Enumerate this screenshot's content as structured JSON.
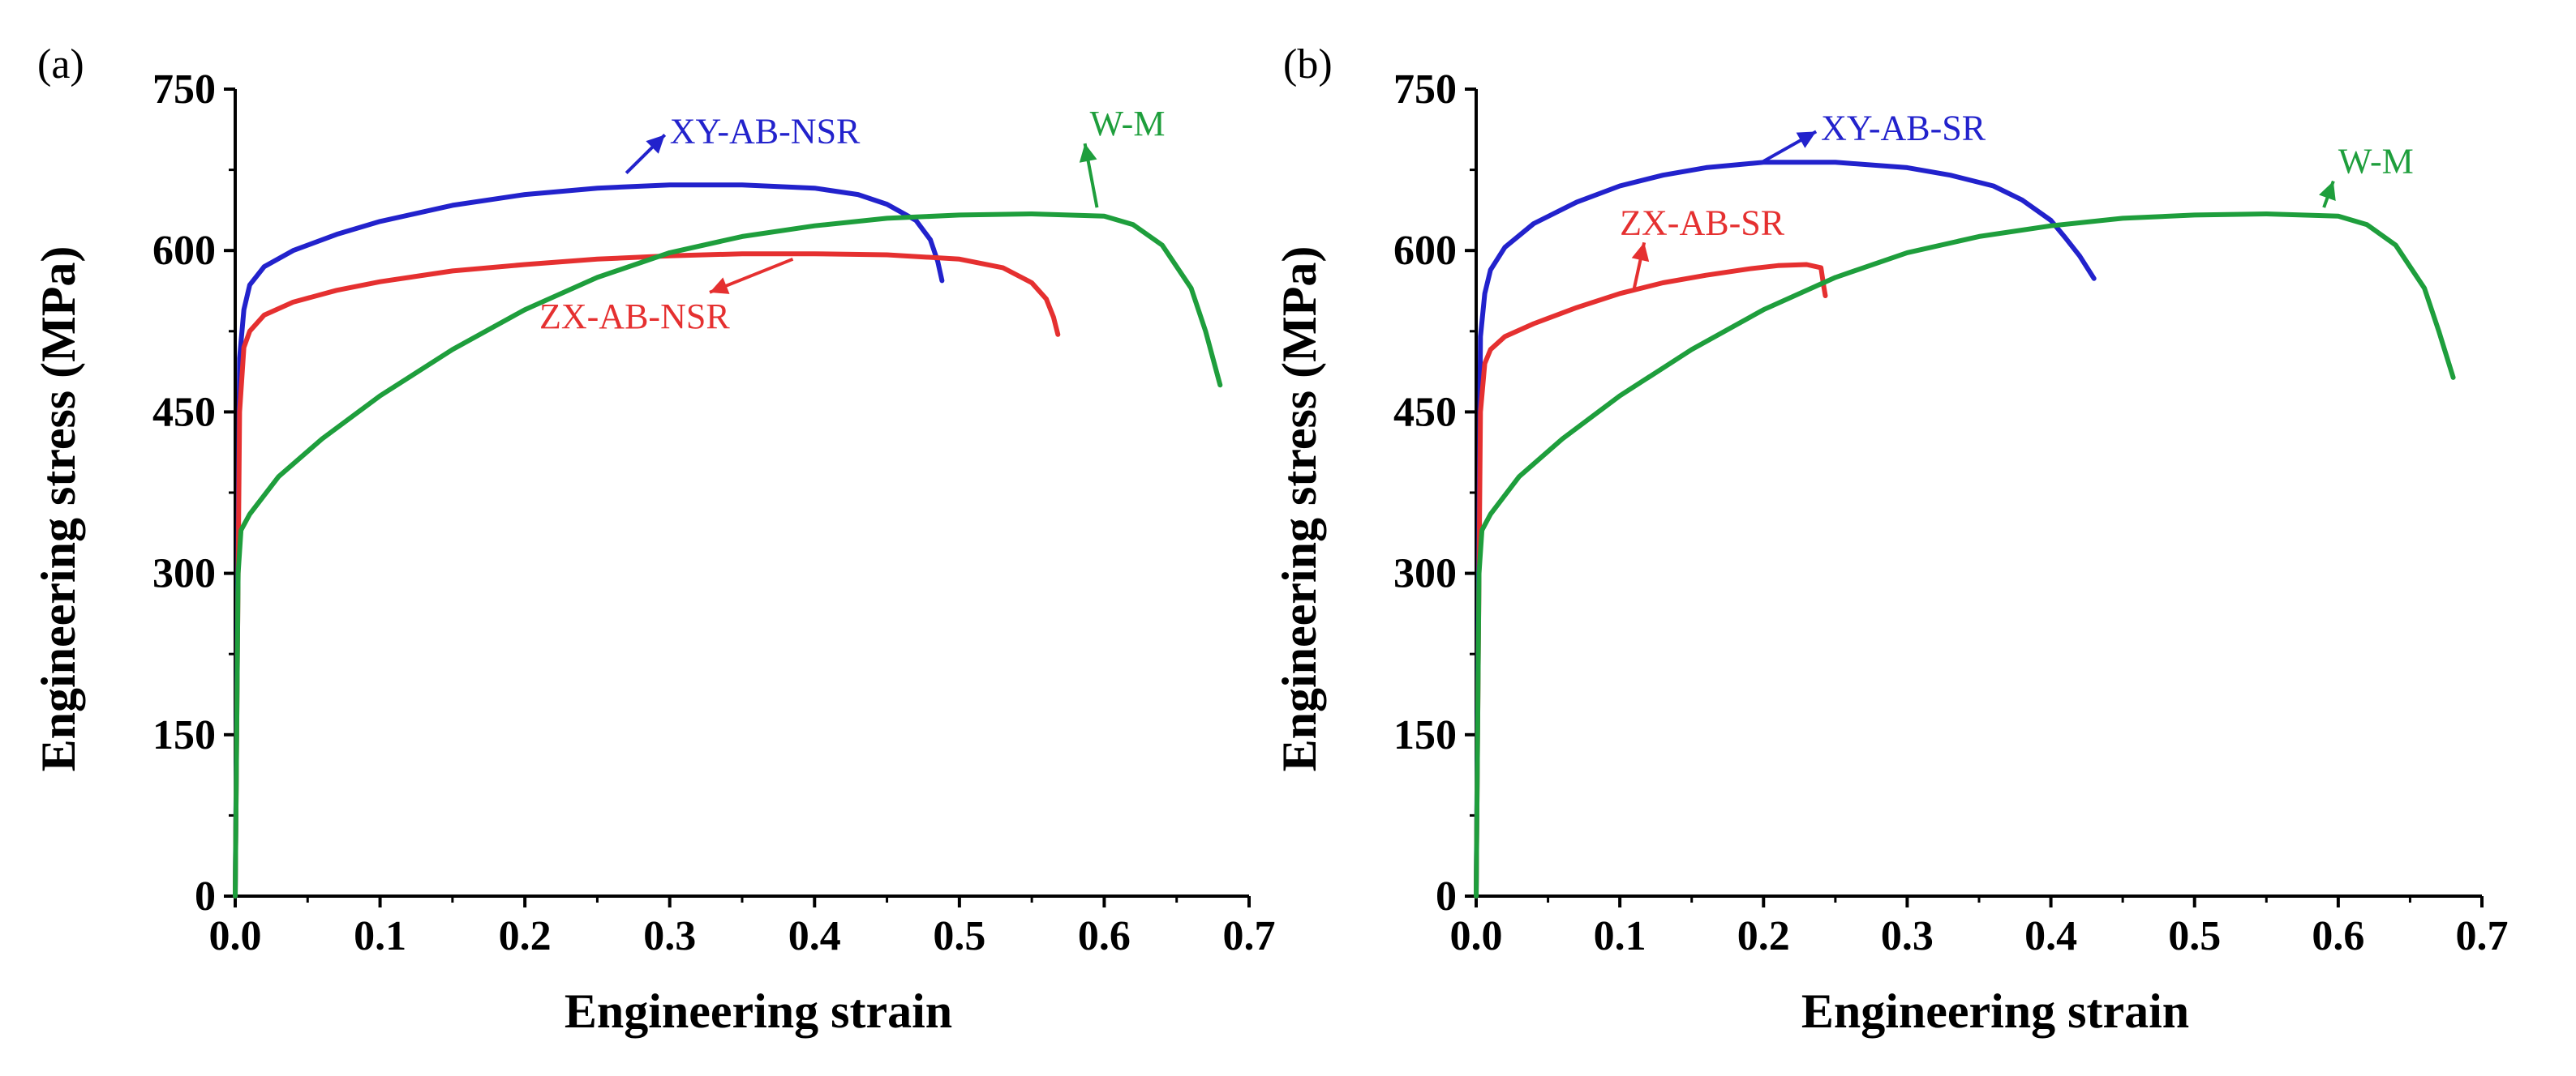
{
  "chart_data": [
    {
      "type": "line",
      "panel": "(a)",
      "title": "",
      "xlabel": "Engineering strain",
      "ylabel": "Engineering stress (MPa)",
      "xlim": [
        0,
        0.7
      ],
      "ylim": [
        0,
        750
      ],
      "xticks": [
        "0.0",
        "0.1",
        "0.2",
        "0.3",
        "0.4",
        "0.5",
        "0.6",
        "0.7"
      ],
      "yticks": [
        "0",
        "150",
        "300",
        "450",
        "600",
        "750"
      ],
      "grid": false,
      "series": [
        {
          "name": "XY-AB-NSR",
          "color": "#2222cc",
          "label_at": [
            0.3,
            700
          ],
          "arrow_to": [
            0.27,
            672
          ],
          "x": [
            0,
            0.003,
            0.006,
            0.01,
            0.02,
            0.04,
            0.07,
            0.1,
            0.15,
            0.2,
            0.25,
            0.3,
            0.35,
            0.4,
            0.43,
            0.45,
            0.47,
            0.48,
            0.485,
            0.488
          ],
          "y": [
            0,
            500,
            545,
            568,
            585,
            600,
            615,
            627,
            642,
            652,
            658,
            661,
            661,
            658,
            652,
            643,
            628,
            610,
            590,
            572
          ]
        },
        {
          "name": "ZX-AB-NSR",
          "color": "#e53030",
          "label_at": [
            0.21,
            528
          ],
          "arrow_to": [
            0.385,
            592
          ],
          "x": [
            0,
            0.003,
            0.006,
            0.01,
            0.02,
            0.04,
            0.07,
            0.1,
            0.15,
            0.2,
            0.25,
            0.3,
            0.35,
            0.4,
            0.45,
            0.5,
            0.53,
            0.55,
            0.56,
            0.565,
            0.568
          ],
          "y": [
            0,
            450,
            510,
            525,
            540,
            552,
            563,
            571,
            581,
            587,
            592,
            595,
            597,
            597,
            596,
            592,
            584,
            570,
            555,
            538,
            522
          ]
        },
        {
          "name": "W-M",
          "color": "#1e9e3c",
          "label_at": [
            0.59,
            707
          ],
          "arrow_to": [
            0.595,
            640
          ],
          "x": [
            0,
            0.002,
            0.004,
            0.01,
            0.03,
            0.06,
            0.1,
            0.15,
            0.2,
            0.25,
            0.3,
            0.35,
            0.4,
            0.45,
            0.5,
            0.55,
            0.6,
            0.62,
            0.64,
            0.66,
            0.67,
            0.68
          ],
          "y": [
            0,
            300,
            340,
            355,
            390,
            425,
            465,
            508,
            545,
            575,
            598,
            613,
            623,
            630,
            633,
            634,
            632,
            624,
            605,
            565,
            525,
            475
          ]
        }
      ]
    },
    {
      "type": "line",
      "panel": "(b)",
      "title": "",
      "xlabel": "Engineering strain",
      "ylabel": "Engineering stress (MPa)",
      "xlim": [
        0,
        0.7
      ],
      "ylim": [
        0,
        750
      ],
      "xticks": [
        "0.0",
        "0.1",
        "0.2",
        "0.3",
        "0.4",
        "0.5",
        "0.6",
        "0.7"
      ],
      "yticks": [
        "0",
        "150",
        "300",
        "450",
        "600",
        "750"
      ],
      "grid": false,
      "series": [
        {
          "name": "XY-AB-SR",
          "color": "#2222cc",
          "label_at": [
            0.24,
            703
          ],
          "arrow_to": [
            0.2,
            683
          ],
          "x": [
            0,
            0.003,
            0.006,
            0.01,
            0.02,
            0.04,
            0.07,
            0.1,
            0.13,
            0.16,
            0.2,
            0.25,
            0.3,
            0.33,
            0.36,
            0.38,
            0.4,
            0.41,
            0.42,
            0.43
          ],
          "y": [
            0,
            520,
            560,
            582,
            603,
            625,
            645,
            660,
            670,
            677,
            682,
            682,
            677,
            670,
            660,
            647,
            628,
            612,
            595,
            574
          ]
        },
        {
          "name": "ZX-AB-SR",
          "color": "#e53030",
          "label_at": [
            0.1,
            615
          ],
          "arrow_to": [
            0.11,
            565
          ],
          "x": [
            0,
            0.003,
            0.006,
            0.01,
            0.02,
            0.04,
            0.07,
            0.1,
            0.13,
            0.16,
            0.19,
            0.21,
            0.23,
            0.24,
            0.241,
            0.242,
            0.243
          ],
          "y": [
            0,
            450,
            495,
            508,
            520,
            532,
            547,
            560,
            570,
            577,
            583,
            586,
            587,
            584,
            575,
            566,
            558
          ]
        },
        {
          "name": "W-M",
          "color": "#1e9e3c",
          "label_at": [
            0.6,
            672
          ],
          "arrow_to": [
            0.59,
            640
          ],
          "x": [
            0,
            0.002,
            0.004,
            0.01,
            0.03,
            0.06,
            0.1,
            0.15,
            0.2,
            0.25,
            0.3,
            0.35,
            0.4,
            0.45,
            0.5,
            0.55,
            0.6,
            0.62,
            0.64,
            0.66,
            0.67,
            0.68
          ],
          "y": [
            0,
            300,
            340,
            355,
            390,
            425,
            465,
            508,
            545,
            575,
            598,
            613,
            623,
            630,
            633,
            634,
            632,
            624,
            605,
            565,
            525,
            482
          ]
        }
      ]
    }
  ]
}
